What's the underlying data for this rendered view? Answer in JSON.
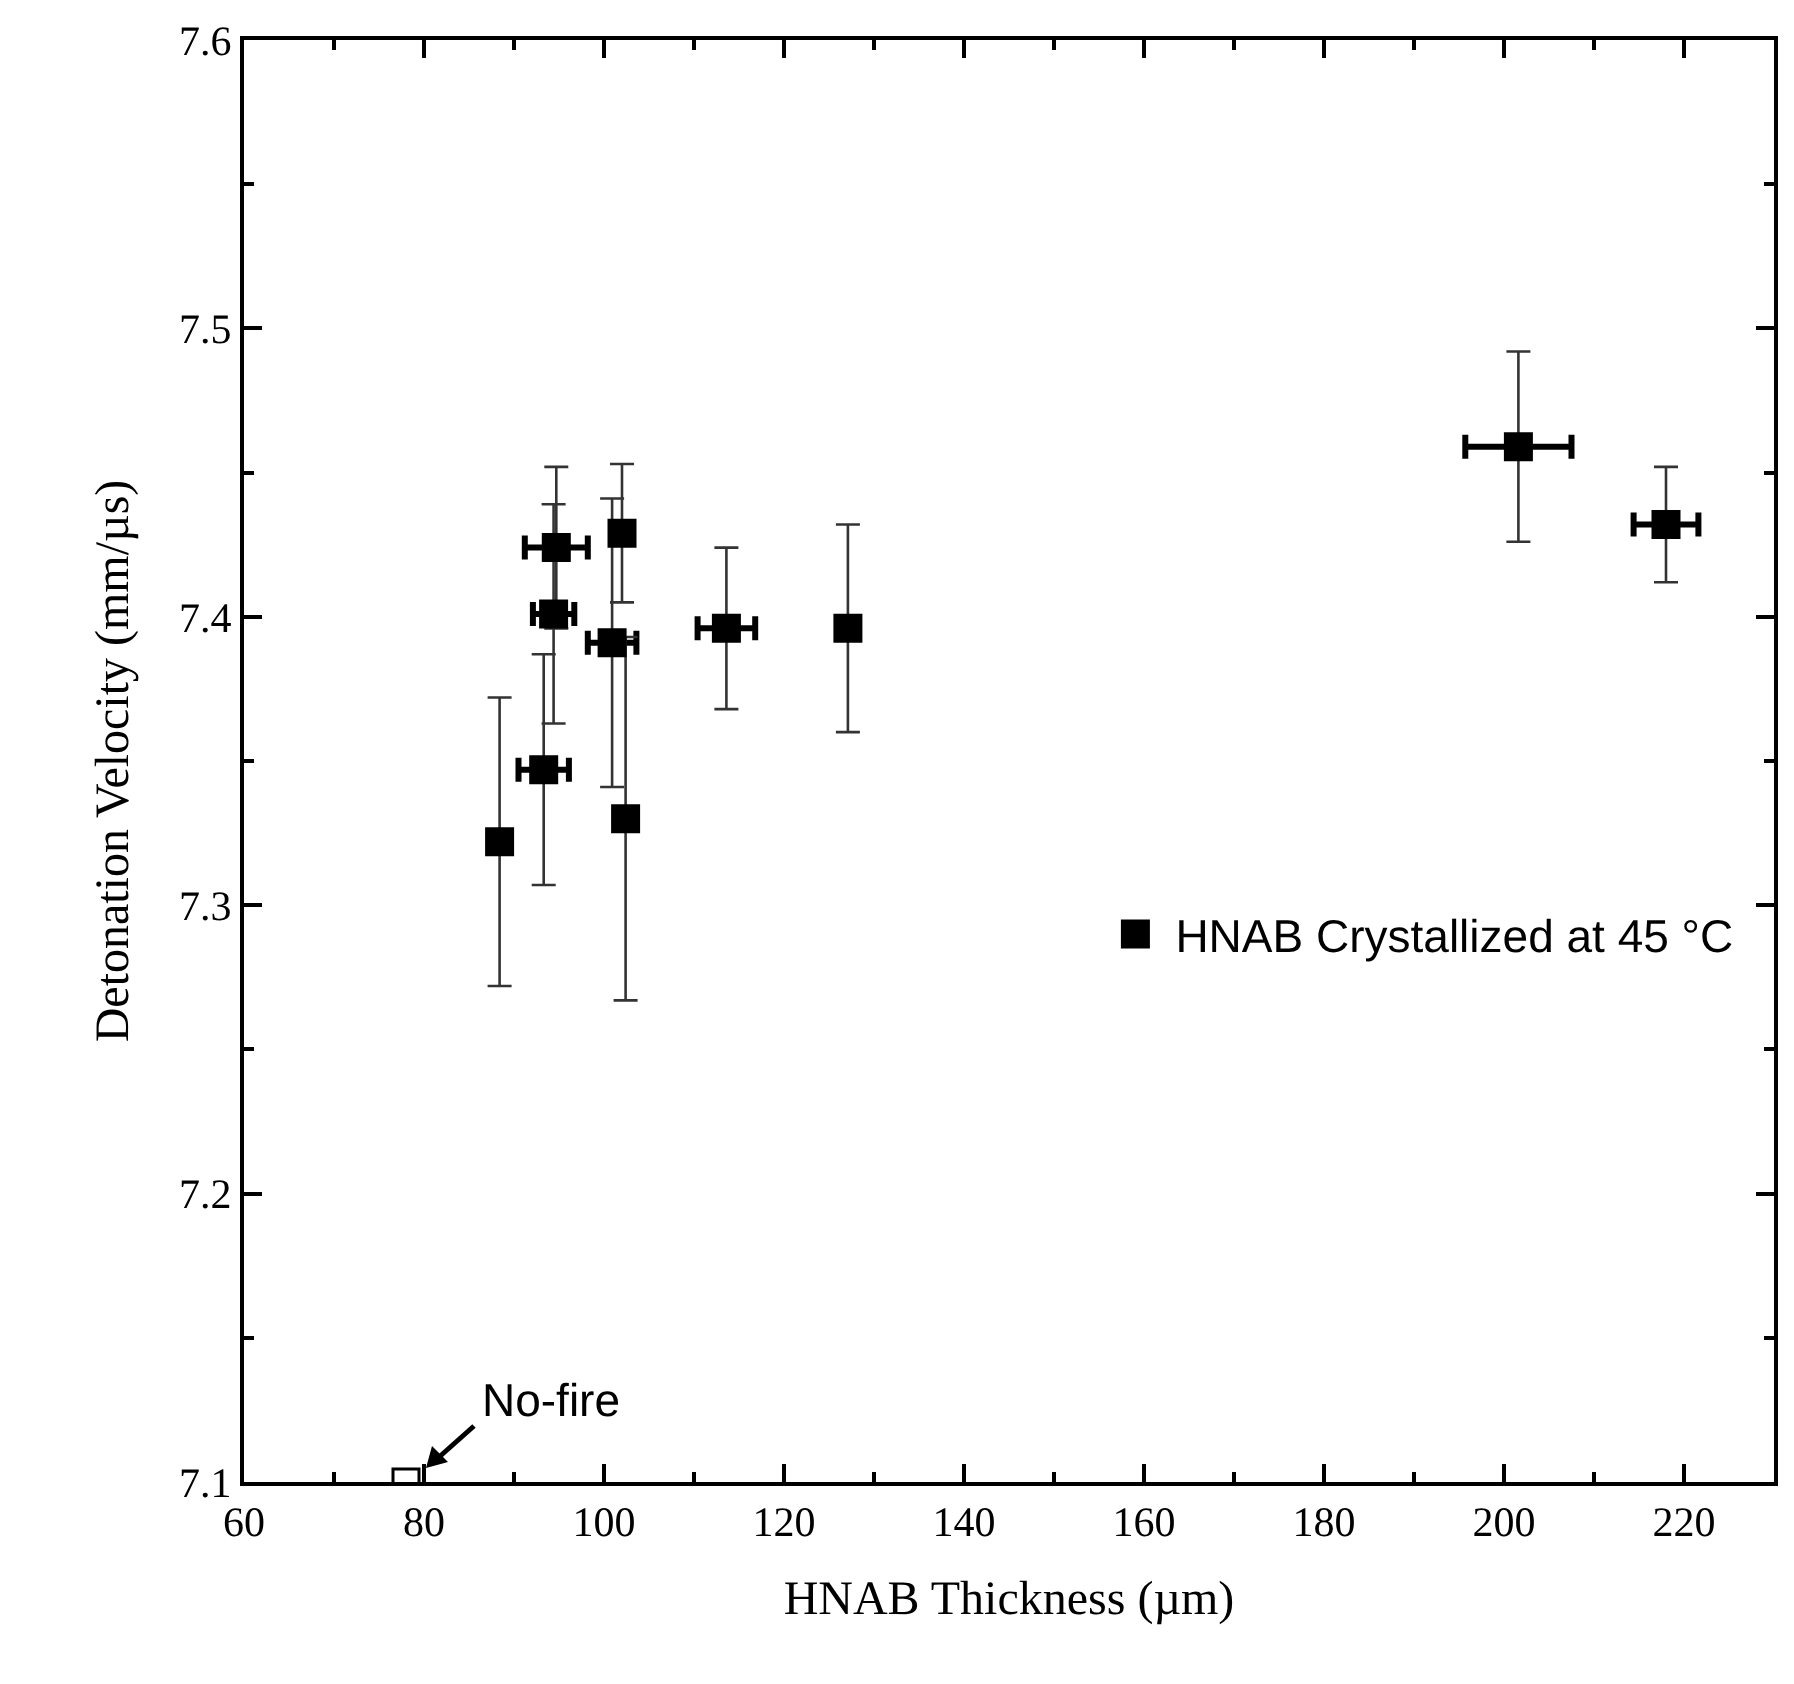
{
  "chart_data": {
    "type": "scatter",
    "xlabel": "HNAB Thickness (µm)",
    "ylabel": "Detonation Velocity (mm/µs)",
    "xlim": [
      60,
      230
    ],
    "xticks": [
      60,
      80,
      100,
      120,
      140,
      160,
      180,
      200,
      220
    ],
    "ylim": [
      7.1,
      7.6
    ],
    "yticks": [
      7.1,
      7.2,
      7.3,
      7.4,
      7.5,
      7.6
    ],
    "grid": false,
    "legend": "right",
    "marker": "square",
    "series": [
      {
        "name": "HNAB Crystallized at 45 °C",
        "color": "#000000",
        "x": [
          88.4,
          93.3,
          94.7,
          94.4,
          102.0,
          100.9,
          102.4,
          113.6,
          127.1,
          201.6,
          218.0
        ],
        "values": [
          7.322,
          7.347,
          7.424,
          7.401,
          7.429,
          7.391,
          7.33,
          7.396,
          7.396,
          7.459,
          7.432
        ],
        "errors": [
          0.05,
          0.04,
          0.028,
          0.038,
          0.024,
          0.05,
          0.063,
          0.028,
          0.036,
          0.033,
          0.02
        ],
        "xerrors": [
          null,
          2.8,
          3.5,
          2.3,
          null,
          2.7,
          null,
          3.2,
          null,
          5.9,
          3.6
        ]
      },
      {
        "color": "#ffffff",
        "x": [
          78
        ],
        "values": [
          7.1
        ]
      }
    ],
    "annotations": [
      {
        "text": "No-fire",
        "x": 78,
        "y": 7.1
      }
    ]
  }
}
